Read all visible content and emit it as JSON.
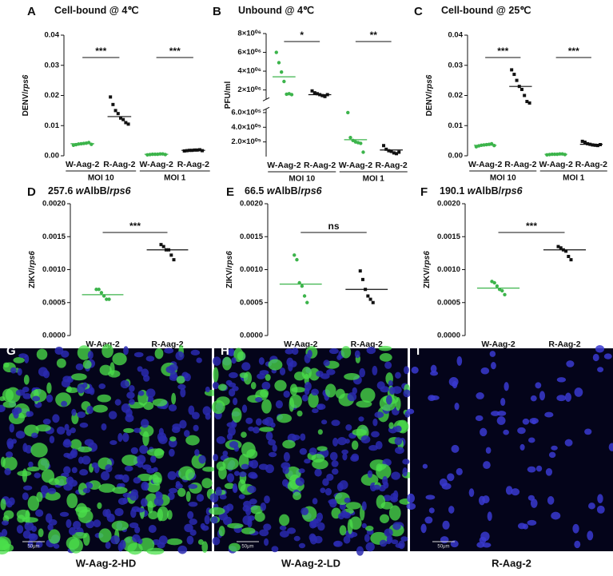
{
  "chart_data": [
    {
      "type": "strip",
      "panel": "A",
      "title": [
        {
          "text": "Cell-bound @ 4℃"
        }
      ],
      "ylabel": [
        {
          "text": "DENV/"
        },
        {
          "text": "rps6",
          "italic": true
        }
      ],
      "categories": [
        "W-Aag-2",
        "R-Aag-2",
        "W-Aag-2",
        "R-Aag-2"
      ],
      "groups": [
        "MOI 10",
        "MOI 1"
      ],
      "colors": [
        "#3cb44b",
        "#111111",
        "#3cb44b",
        "#111111"
      ],
      "points": [
        [
          0.0035,
          0.0037,
          0.0039,
          0.004,
          0.0041,
          0.0042,
          0.0044,
          0.0038
        ],
        [
          0.0195,
          0.017,
          0.015,
          0.014,
          0.0125,
          0.012,
          0.011,
          0.0105
        ],
        [
          0.0003,
          0.0004,
          0.0005,
          0.0005,
          0.0005,
          0.0006,
          0.0006,
          0.0004
        ],
        [
          0.0016,
          0.0017,
          0.0018,
          0.0018,
          0.0019,
          0.0019,
          0.002,
          0.0017
        ]
      ],
      "means": [
        0.004,
        0.013,
        0.0005,
        0.0018
      ],
      "significance": [
        "***",
        "***"
      ],
      "ylims": [
        [
          0,
          0.04
        ]
      ],
      "yticks": [
        {
          "value": 0,
          "label": "0.00"
        },
        {
          "value": 0.01,
          "label": "0.01"
        },
        {
          "value": 0.02,
          "label": "0.02"
        },
        {
          "value": 0.03,
          "label": "0.03"
        },
        {
          "value": 0.04,
          "label": "0.04"
        }
      ]
    },
    {
      "type": "strip",
      "panel": "B",
      "title": [
        {
          "text": "Unbound @ 4℃"
        }
      ],
      "ylabel": [
        {
          "text": "PFU/ml"
        }
      ],
      "categories": [
        "W-Aag-2",
        "R-Aag-2",
        "W-Aag-2",
        "R-Aag-2"
      ],
      "groups": [
        "MOI 10",
        "MOI 1"
      ],
      "colors": [
        "#3cb44b",
        "#111111",
        "#3cb44b",
        "#111111"
      ],
      "points": [
        [
          6000000,
          4900000,
          3900000,
          2900000,
          1550000,
          1600000,
          1500000
        ],
        [
          1900000,
          1700000,
          1600000,
          1500000,
          1400000,
          1300000,
          1500000
        ],
        [
          600000,
          260000,
          220000,
          200000,
          190000,
          180000,
          60000
        ],
        [
          150000,
          100000,
          80000,
          70000,
          50000,
          40000,
          60000
        ]
      ],
      "means": [
        3400000,
        1500000,
        230000,
        90000
      ],
      "significance": [
        "*",
        "**"
      ],
      "ylims": [
        [
          0,
          650000
        ],
        [
          1000000,
          8000000
        ]
      ],
      "yticks": [
        {
          "value": 200000,
          "label": "2.0×10⁰⁵"
        },
        {
          "value": 400000,
          "label": "4.0×10⁰⁵"
        },
        {
          "value": 600000,
          "label": "6.0×10⁰⁵"
        },
        {
          "value": 2000000,
          "label": "2×10⁰⁶"
        },
        {
          "value": 4000000,
          "label": "4×10⁰⁶"
        },
        {
          "value": 6000000,
          "label": "6×10⁰⁶"
        },
        {
          "value": 8000000,
          "label": "8×10⁰⁶"
        }
      ]
    },
    {
      "type": "strip",
      "panel": "C",
      "title": [
        {
          "text": "Cell-bound @ 25℃"
        }
      ],
      "ylabel": [
        {
          "text": "DENV/"
        },
        {
          "text": "rps6",
          "italic": true
        }
      ],
      "categories": [
        "W-Aag-2",
        "R-Aag-2",
        "W-Aag-2",
        "R-Aag-2"
      ],
      "groups": [
        "MOI 10",
        "MOI 1"
      ],
      "colors": [
        "#3cb44b",
        "#111111",
        "#3cb44b",
        "#111111"
      ],
      "points": [
        [
          0.003,
          0.0033,
          0.0035,
          0.0036,
          0.0037,
          0.0038,
          0.004,
          0.0034
        ],
        [
          0.0285,
          0.027,
          0.025,
          0.023,
          0.022,
          0.02,
          0.018,
          0.0175
        ],
        [
          0.0003,
          0.0004,
          0.0005,
          0.0005,
          0.0005,
          0.0006,
          0.0006,
          0.0004
        ],
        [
          0.0048,
          0.0045,
          0.004,
          0.0038,
          0.0036,
          0.0035,
          0.0034,
          0.0037
        ]
      ],
      "means": [
        0.0035,
        0.023,
        0.0005,
        0.0038
      ],
      "significance": [
        "***",
        "***"
      ],
      "ylims": [
        [
          0,
          0.04
        ]
      ],
      "yticks": [
        {
          "value": 0,
          "label": "0.00"
        },
        {
          "value": 0.01,
          "label": "0.01"
        },
        {
          "value": 0.02,
          "label": "0.02"
        },
        {
          "value": 0.03,
          "label": "0.03"
        },
        {
          "value": 0.04,
          "label": "0.04"
        }
      ]
    },
    {
      "type": "strip",
      "panel": "D",
      "title": [
        {
          "text": "257.6 "
        },
        {
          "text": "w",
          "italic": true
        },
        {
          "text": "AlbB/"
        },
        {
          "text": "rps6",
          "italic": true
        }
      ],
      "ylabel": [
        {
          "text": "ZIKV/"
        },
        {
          "text": "rps6",
          "italic": true
        }
      ],
      "categories": [
        "W-Aag-2",
        "R-Aag-2"
      ],
      "colors": [
        "#3cb44b",
        "#111111"
      ],
      "points": [
        [
          0.0007,
          0.0007,
          0.00065,
          0.0006,
          0.00055,
          0.00055
        ],
        [
          0.00138,
          0.00135,
          0.0013,
          0.0013,
          0.00122,
          0.00115
        ]
      ],
      "means": [
        0.00062,
        0.0013
      ],
      "significance": [
        "***"
      ],
      "ylims": [
        [
          0,
          0.002
        ]
      ],
      "yticks": [
        {
          "value": 0,
          "label": "0.0000"
        },
        {
          "value": 0.0005,
          "label": "0.0005"
        },
        {
          "value": 0.001,
          "label": "0.0010"
        },
        {
          "value": 0.0015,
          "label": "0.0015"
        },
        {
          "value": 0.002,
          "label": "0.0020"
        }
      ]
    },
    {
      "type": "strip",
      "panel": "E",
      "title": [
        {
          "text": "66.5 "
        },
        {
          "text": "w",
          "italic": true
        },
        {
          "text": "AlbB/"
        },
        {
          "text": "rps6",
          "italic": true
        }
      ],
      "ylabel": [
        {
          "text": "ZIKV/"
        },
        {
          "text": "rps6",
          "italic": true
        }
      ],
      "categories": [
        "W-Aag-2",
        "R-Aag-2"
      ],
      "colors": [
        "#3cb44b",
        "#111111"
      ],
      "points": [
        [
          0.00122,
          0.00115,
          0.0008,
          0.00075,
          0.0006,
          0.0005
        ],
        [
          0.00098,
          0.00085,
          0.0007,
          0.0006,
          0.00055,
          0.0005
        ]
      ],
      "means": [
        0.00078,
        0.0007
      ],
      "significance": [
        "ns"
      ],
      "ylims": [
        [
          0,
          0.002
        ]
      ],
      "yticks": [
        {
          "value": 0,
          "label": "0.0000"
        },
        {
          "value": 0.0005,
          "label": "0.0005"
        },
        {
          "value": 0.001,
          "label": "0.0010"
        },
        {
          "value": 0.0015,
          "label": "0.0015"
        },
        {
          "value": 0.002,
          "label": "0.0020"
        }
      ]
    },
    {
      "type": "strip",
      "panel": "F",
      "title": [
        {
          "text": "190.1 "
        },
        {
          "text": "w",
          "italic": true
        },
        {
          "text": "AlbB/"
        },
        {
          "text": "rps6",
          "italic": true
        }
      ],
      "ylabel": [
        {
          "text": "ZIKV/"
        },
        {
          "text": "rps6",
          "italic": true
        }
      ],
      "categories": [
        "W-Aag-2",
        "R-Aag-2"
      ],
      "colors": [
        "#3cb44b",
        "#111111"
      ],
      "points": [
        [
          0.00082,
          0.0008,
          0.00075,
          0.0007,
          0.00068,
          0.00062
        ],
        [
          0.00135,
          0.00133,
          0.0013,
          0.00128,
          0.0012,
          0.00115
        ]
      ],
      "means": [
        0.00072,
        0.0013
      ],
      "significance": [
        "***"
      ],
      "ylims": [
        [
          0,
          0.002
        ]
      ],
      "yticks": [
        {
          "value": 0,
          "label": "0.0000"
        },
        {
          "value": 0.0005,
          "label": "0.0005"
        },
        {
          "value": 0.001,
          "label": "0.0010"
        },
        {
          "value": 0.0015,
          "label": "0.0015"
        },
        {
          "value": 0.002,
          "label": "0.0020"
        }
      ]
    }
  ],
  "images": [
    {
      "panel": "G",
      "caption": "W-Aag-2-HD",
      "scale_bar": "50μm"
    },
    {
      "panel": "H",
      "caption": "W-Aag-2-LD",
      "scale_bar": "50μm"
    },
    {
      "panel": "I",
      "caption": "R-Aag-2",
      "scale_bar": "50μm"
    }
  ]
}
